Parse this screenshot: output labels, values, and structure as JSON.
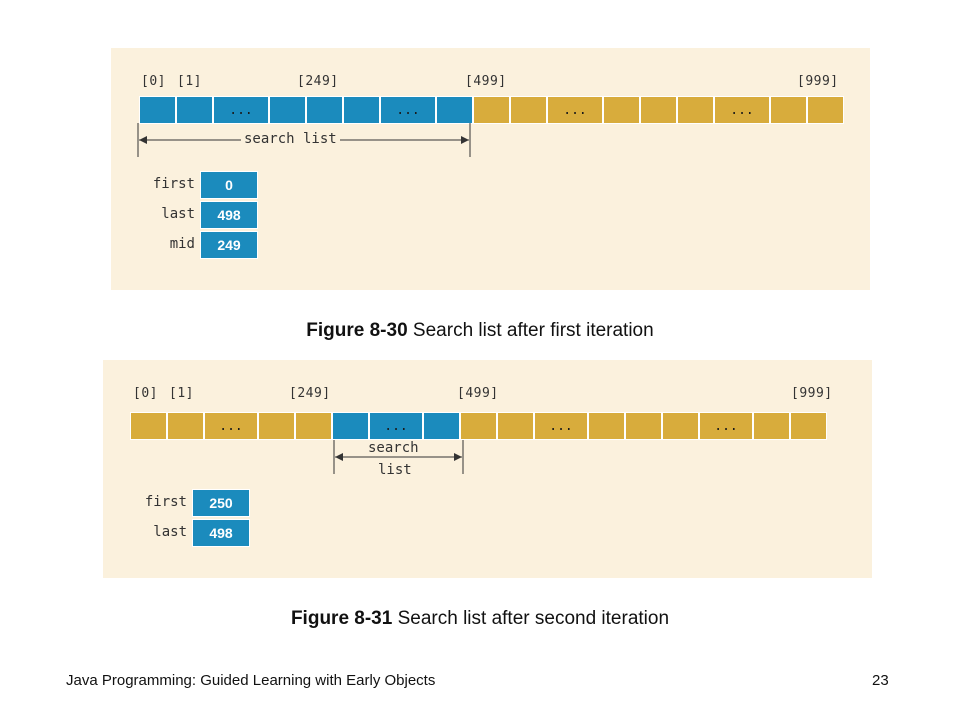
{
  "figure1": {
    "indices": {
      "i0": "[0]",
      "i1": "[1]",
      "i249": "[249]",
      "i499": "[499]",
      "i999": "[999]"
    },
    "ellipsis": "...",
    "span_label": "search list",
    "variables": [
      {
        "name": "first",
        "value": "0"
      },
      {
        "name": "last",
        "value": "498"
      },
      {
        "name": "mid",
        "value": "249"
      }
    ],
    "caption_bold": "Figure 8-30",
    "caption_text": " Search list after first iteration"
  },
  "figure2": {
    "indices": {
      "i0": "[0]",
      "i1": "[1]",
      "i249": "[249]",
      "i499": "[499]",
      "i999": "[999]"
    },
    "ellipsis": "...",
    "span_label_line1": "search",
    "span_label_line2": "list",
    "variables": [
      {
        "name": "first",
        "value": "250"
      },
      {
        "name": "last",
        "value": "498"
      }
    ],
    "caption_bold": "Figure 8-31",
    "caption_text": " Search list after second iteration"
  },
  "footer": {
    "title": "Java Programming: Guided Learning with Early Objects",
    "page_number": "23"
  },
  "colors": {
    "in_list": "#1b8bbd",
    "out_of_list": "#d8ac3c",
    "panel": "#fbf1dd"
  }
}
